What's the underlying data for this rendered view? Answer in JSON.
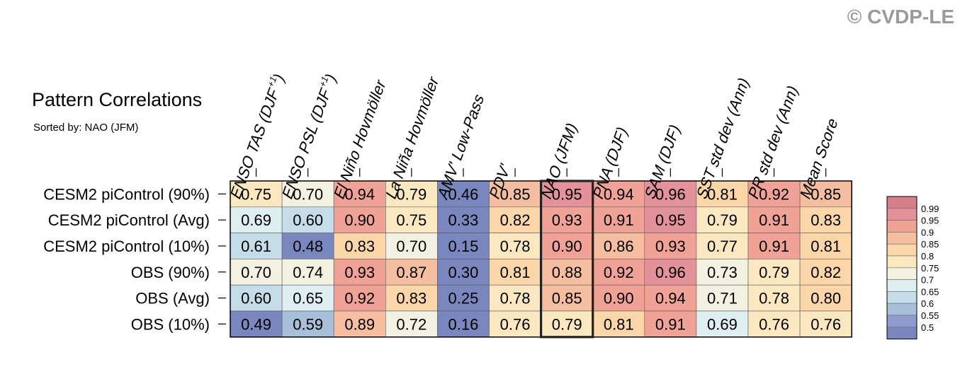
{
  "title": "Pattern Correlations",
  "subtitle": "Sorted by: NAO (JFM)",
  "watermark": "© CVDP-LE",
  "chart_data": {
    "type": "heatmap",
    "columns": [
      {
        "text": "ENSO TAS (DJF",
        "sup": "+1",
        "tail": ")"
      },
      {
        "text": "ENSO PSL (DJF",
        "sup": "+1",
        "tail": ")"
      },
      {
        "text": "El Niño Hovmöller"
      },
      {
        "text": "La Niña Hovmöller"
      },
      {
        "text": "AMV' Low-Pass"
      },
      {
        "text": "PDV'"
      },
      {
        "text": "NAO (JFM)"
      },
      {
        "text": "PNA (DJF)"
      },
      {
        "text": "SAM (DJF)"
      },
      {
        "text": "SST std dev (Ann)"
      },
      {
        "text": "PR std dev (Ann)"
      },
      {
        "text": "Mean Score"
      }
    ],
    "rows": [
      "CESM2 piControl (90%)",
      "CESM2 piControl (Avg)",
      "CESM2 piControl (10%)",
      "OBS (90%)",
      "OBS (Avg)",
      "OBS (10%)"
    ],
    "values": [
      [
        "0.75",
        "0.70",
        "0.94",
        "0.79",
        "0.46",
        "0.85",
        "0.95",
        "0.94",
        "0.96",
        "0.81",
        "0.92",
        "0.85"
      ],
      [
        "0.69",
        "0.60",
        "0.90",
        "0.75",
        "0.33",
        "0.82",
        "0.93",
        "0.91",
        "0.95",
        "0.79",
        "0.91",
        "0.83"
      ],
      [
        "0.61",
        "0.48",
        "0.83",
        "0.70",
        "0.15",
        "0.78",
        "0.90",
        "0.86",
        "0.93",
        "0.77",
        "0.91",
        "0.81"
      ],
      [
        "0.70",
        "0.74",
        "0.93",
        "0.87",
        "0.30",
        "0.81",
        "0.88",
        "0.92",
        "0.96",
        "0.73",
        "0.79",
        "0.82"
      ],
      [
        "0.60",
        "0.65",
        "0.92",
        "0.83",
        "0.25",
        "0.78",
        "0.85",
        "0.90",
        "0.94",
        "0.71",
        "0.78",
        "0.80"
      ],
      [
        "0.49",
        "0.59",
        "0.89",
        "0.72",
        "0.16",
        "0.76",
        "0.79",
        "0.81",
        "0.91",
        "0.69",
        "0.76",
        "0.76"
      ]
    ],
    "highlighted_column": "NAO (JFM)",
    "colorbar": {
      "labels": [
        "0.99",
        "0.95",
        "0.9",
        "0.85",
        "0.8",
        "0.75",
        "0.7",
        "0.65",
        "0.6",
        "0.55",
        "0.5"
      ],
      "colors": [
        "#d47f89",
        "#e3919a",
        "#efa295",
        "#f6bea0",
        "#fbd6a8",
        "#fbe8c0",
        "#f2f1e2",
        "#dfeef1",
        "#c4dde9",
        "#a7bfd9",
        "#8d9ccc",
        "#7a87bf"
      ]
    }
  }
}
